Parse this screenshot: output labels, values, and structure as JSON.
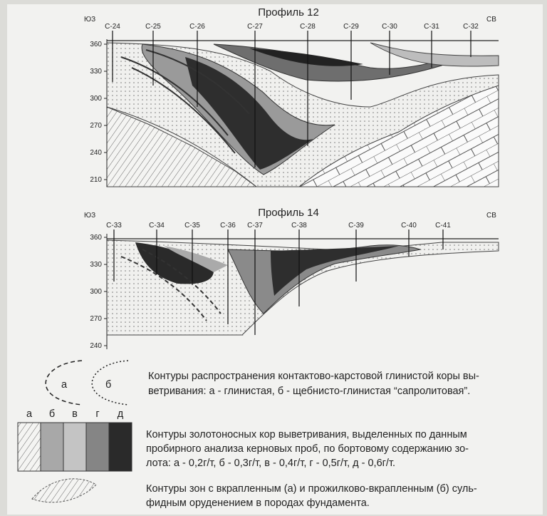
{
  "profiles": [
    {
      "title": "Профиль 12",
      "left": "ЮЗ",
      "right": "СВ",
      "boreholes": [
        "С-24",
        "С-25",
        "С-26",
        "С-27",
        "С-28",
        "С-29",
        "С-30",
        "С-31",
        "С-32"
      ],
      "depth_ticks": [
        360,
        330,
        300,
        270,
        240,
        210
      ]
    },
    {
      "title": "Профиль 14",
      "left": "ЮЗ",
      "right": "СВ",
      "boreholes": [
        "С-33",
        "С-34",
        "С-35",
        "С-36",
        "С-37",
        "С-38",
        "С-39",
        "С-40",
        "С-41"
      ],
      "depth_ticks": [
        360,
        330,
        300,
        270,
        240
      ]
    }
  ],
  "legend": {
    "weathering_crust": {
      "labels": [
        "а",
        "б"
      ],
      "lines": [
        "Контуры распространения контактово-карстовой глинистой коры вы-",
        "ветривания: а - глинистая, б - щебнисто-глинистая “сапролитовая”."
      ]
    },
    "gold_grades": {
      "labels": [
        "а",
        "б",
        "в",
        "г",
        "д"
      ],
      "lines": [
        "Контуры золотоносных кор выветривания, выделенных по данным",
        "пробирного анализа керновых проб, по бортовому содержанию зо-",
        "лота: а - 0,2г/т, б - 0,3г/т, в - 0,4г/т, г - 0,5г/т, д - 0,6г/т."
      ]
    },
    "sulfide": {
      "lines": [
        "Контуры зон с вкрапленным (а) и прожилково-вкрапленным (б) суль-",
        "фидным оруденением в породах фундамента."
      ]
    }
  }
}
